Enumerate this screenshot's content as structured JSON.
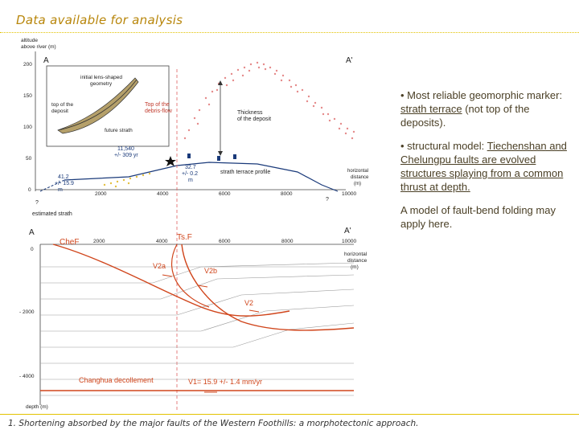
{
  "slide": {
    "title": "Data available for analysis",
    "footer": "1. Shortening absorbed by the major faults of the Western Foothills: a morphotectonic approach."
  },
  "bullets": {
    "b1_prefix": "• Most reliable geomorphic marker: ",
    "b1_underlined": "strath terrace",
    "b1_suffix": " (not top of the deposits).",
    "b2_prefix": "• structural model: ",
    "b2_underlined": "Tiechenshan and Chelungpu faults are evolved structures splaying from a common thrust at depth.",
    "note": "A model of fault-bend folding may apply here."
  },
  "profile": {
    "ylabel_1": "altitude",
    "ylabel_2": "above river (m)",
    "yticks": [
      "200",
      "150",
      "100",
      "50",
      "0"
    ],
    "xticks": [
      "2000",
      "4000",
      "6000",
      "8000",
      "10000"
    ],
    "section_start": "A",
    "section_end": "A'",
    "inset_label_1": "initial lens-shaped",
    "inset_label_2": "geometry",
    "inset_top": "top of the",
    "inset_top_2": "deposit",
    "inset_future": "future strath",
    "top_debris_1": "Top of the",
    "top_debris_2": "debris-flow",
    "thickness_1": "Thickness",
    "thickness_2": "of the deposit",
    "age_1": "11,540",
    "age_2": "+/- 309 yr",
    "rate_left_1": "41.2",
    "rate_left_2": "+/- 15.9",
    "rate_left_3": "m",
    "rate_mid_1": "32.7",
    "rate_mid_2": "+/- 0.2",
    "rate_mid_3": "m",
    "strath_profile": "strath terrace profile",
    "hdist_1": "horizontal",
    "hdist_2": "distance",
    "hdist_3": "(m)",
    "q1": "?",
    "q2": "?",
    "estimated": "estimated strath"
  },
  "section": {
    "start": "A",
    "end": "A'",
    "chef": "CheF",
    "tsf": "Ts.F",
    "xticks": [
      "2000",
      "4000",
      "6000",
      "8000",
      "10000"
    ],
    "zero": "0",
    "d2000": "- 2000",
    "d4000": "- 4000",
    "depth": "depth (m)",
    "hdist_1": "horizontal",
    "hdist_2": "distance",
    "hdist_3": "(m)",
    "v2a": "V2a",
    "v2b": "V2b",
    "v2": "V2",
    "decollement": "Changhua decollement",
    "v1": "V1= 15.9 +/- 1.4 mm/yr"
  }
}
